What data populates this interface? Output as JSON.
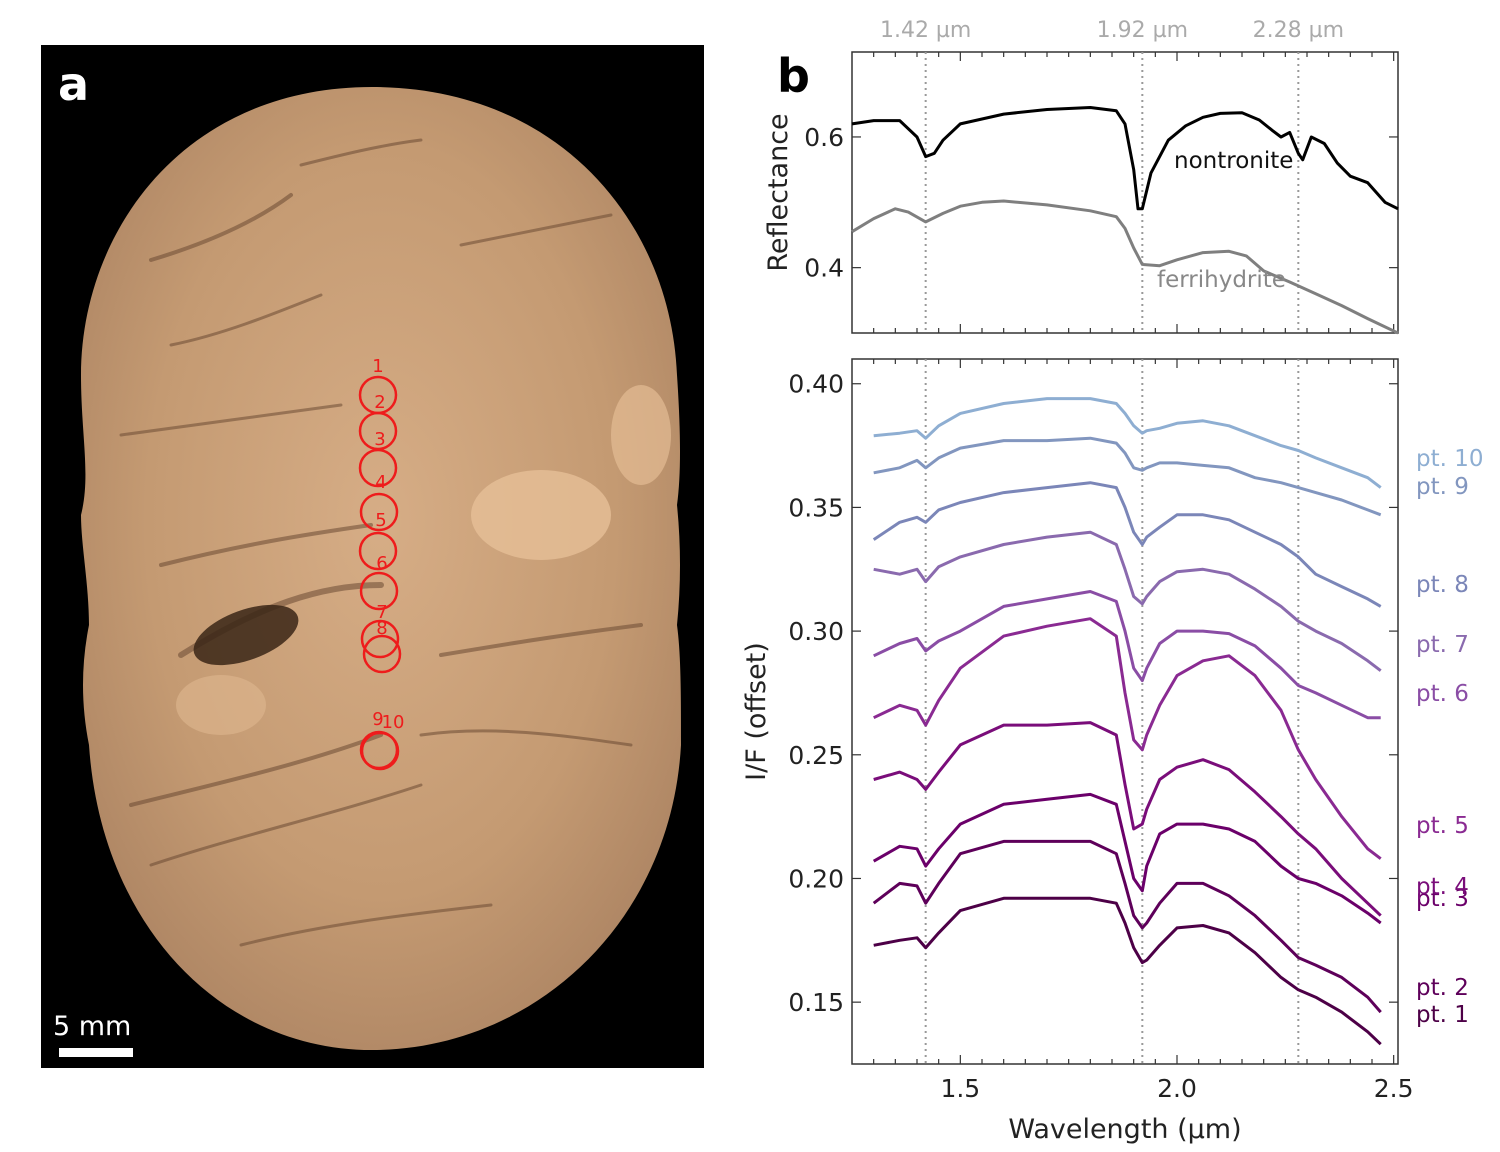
{
  "panel_a": {
    "label": "a",
    "scale_bar": "5 mm",
    "markers": [
      "1",
      "2",
      "3",
      "4",
      "5",
      "6",
      "7",
      "8",
      "9",
      "10"
    ]
  },
  "panel_b": {
    "label": "b"
  },
  "chart_data": [
    {
      "type": "line",
      "xlim": [
        1.25,
        2.51
      ],
      "ylim": [
        0.3,
        0.73
      ],
      "ylabel": "Reflectance",
      "yticks": [
        0.4,
        0.6
      ],
      "reference_lines": [
        1.42,
        1.92,
        2.28
      ],
      "reference_labels": [
        "1.42 µm",
        "1.92 µm",
        "2.28 µm"
      ],
      "series": [
        {
          "name": "nontronite",
          "color": "#000000",
          "x": [
            1.25,
            1.3,
            1.36,
            1.4,
            1.42,
            1.44,
            1.46,
            1.5,
            1.6,
            1.7,
            1.8,
            1.86,
            1.88,
            1.9,
            1.91,
            1.92,
            1.94,
            1.98,
            2.02,
            2.06,
            2.1,
            2.15,
            2.19,
            2.22,
            2.24,
            2.26,
            2.28,
            2.29,
            2.31,
            2.34,
            2.37,
            2.4,
            2.44,
            2.48,
            2.51
          ],
          "y": [
            0.62,
            0.625,
            0.625,
            0.6,
            0.57,
            0.575,
            0.595,
            0.62,
            0.635,
            0.642,
            0.645,
            0.64,
            0.62,
            0.55,
            0.49,
            0.49,
            0.545,
            0.595,
            0.617,
            0.63,
            0.636,
            0.637,
            0.626,
            0.61,
            0.6,
            0.607,
            0.575,
            0.565,
            0.6,
            0.59,
            0.56,
            0.54,
            0.53,
            0.5,
            0.49
          ]
        },
        {
          "name": "ferrihydrite",
          "color": "#7f7f7f",
          "x": [
            1.25,
            1.3,
            1.35,
            1.38,
            1.42,
            1.46,
            1.5,
            1.55,
            1.6,
            1.7,
            1.8,
            1.86,
            1.88,
            1.9,
            1.92,
            1.96,
            2.0,
            2.06,
            2.12,
            2.16,
            2.2,
            2.26,
            2.32,
            2.38,
            2.44,
            2.51
          ],
          "y": [
            0.455,
            0.475,
            0.49,
            0.485,
            0.47,
            0.483,
            0.494,
            0.5,
            0.502,
            0.496,
            0.487,
            0.478,
            0.46,
            0.43,
            0.405,
            0.403,
            0.412,
            0.423,
            0.425,
            0.418,
            0.395,
            0.378,
            0.36,
            0.342,
            0.322,
            0.3
          ]
        }
      ]
    },
    {
      "type": "line",
      "xlim": [
        1.25,
        2.51
      ],
      "ylim": [
        0.125,
        0.41
      ],
      "xlabel": "Wavelength (µm)",
      "ylabel": "I/F (offset)",
      "xticks": [
        1.5,
        2.0,
        2.5
      ],
      "xtick_labels": [
        "1.5",
        "2.0",
        "2.5"
      ],
      "yticks": [
        0.15,
        0.2,
        0.25,
        0.3,
        0.35,
        0.4
      ],
      "ytick_labels": [
        "0.15",
        "0.20",
        "0.25",
        "0.30",
        "0.35",
        "0.40"
      ],
      "reference_lines": [
        1.42,
        1.92,
        2.28
      ],
      "x": [
        1.3,
        1.36,
        1.4,
        1.42,
        1.45,
        1.5,
        1.6,
        1.7,
        1.8,
        1.86,
        1.88,
        1.9,
        1.92,
        1.93,
        1.96,
        2.0,
        2.06,
        2.12,
        2.18,
        2.24,
        2.28,
        2.32,
        2.38,
        2.44,
        2.47
      ],
      "series": [
        {
          "name": "pt. 1",
          "color": "#4d0047",
          "y": [
            0.173,
            0.175,
            0.176,
            0.172,
            0.178,
            0.187,
            0.192,
            0.192,
            0.192,
            0.19,
            0.182,
            0.172,
            0.166,
            0.167,
            0.173,
            0.18,
            0.181,
            0.178,
            0.17,
            0.16,
            0.155,
            0.152,
            0.146,
            0.138,
            0.133
          ]
        },
        {
          "name": "pt. 2",
          "color": "#5e005a",
          "y": [
            0.19,
            0.198,
            0.197,
            0.19,
            0.198,
            0.21,
            0.215,
            0.215,
            0.215,
            0.21,
            0.198,
            0.185,
            0.18,
            0.182,
            0.19,
            0.198,
            0.198,
            0.193,
            0.185,
            0.175,
            0.168,
            0.165,
            0.16,
            0.152,
            0.146
          ]
        },
        {
          "name": "pt. 3",
          "color": "#6b006a",
          "y": [
            0.207,
            0.213,
            0.212,
            0.205,
            0.212,
            0.222,
            0.23,
            0.232,
            0.234,
            0.23,
            0.215,
            0.2,
            0.195,
            0.205,
            0.218,
            0.222,
            0.222,
            0.22,
            0.215,
            0.205,
            0.2,
            0.198,
            0.193,
            0.186,
            0.182
          ]
        },
        {
          "name": "pt. 4",
          "color": "#7a0d7a",
          "y": [
            0.24,
            0.243,
            0.24,
            0.236,
            0.243,
            0.254,
            0.262,
            0.262,
            0.263,
            0.258,
            0.238,
            0.22,
            0.222,
            0.228,
            0.24,
            0.245,
            0.248,
            0.244,
            0.235,
            0.225,
            0.218,
            0.212,
            0.2,
            0.19,
            0.185
          ]
        },
        {
          "name": "pt. 5",
          "color": "#8a2a92",
          "y": [
            0.265,
            0.27,
            0.268,
            0.262,
            0.272,
            0.285,
            0.298,
            0.302,
            0.305,
            0.298,
            0.275,
            0.256,
            0.252,
            0.258,
            0.27,
            0.282,
            0.288,
            0.29,
            0.282,
            0.268,
            0.252,
            0.24,
            0.225,
            0.212,
            0.208
          ]
        },
        {
          "name": "pt. 6",
          "color": "#8a4da5",
          "y": [
            0.29,
            0.295,
            0.297,
            0.292,
            0.296,
            0.3,
            0.31,
            0.313,
            0.316,
            0.312,
            0.3,
            0.285,
            0.28,
            0.285,
            0.295,
            0.3,
            0.3,
            0.299,
            0.294,
            0.285,
            0.278,
            0.275,
            0.27,
            0.265,
            0.265
          ]
        },
        {
          "name": "pt. 7",
          "color": "#8a6aae",
          "y": [
            0.325,
            0.323,
            0.325,
            0.32,
            0.326,
            0.33,
            0.335,
            0.338,
            0.34,
            0.335,
            0.325,
            0.314,
            0.311,
            0.314,
            0.32,
            0.324,
            0.325,
            0.323,
            0.317,
            0.31,
            0.304,
            0.3,
            0.295,
            0.288,
            0.284
          ]
        },
        {
          "name": "pt. 8",
          "color": "#7b86b8",
          "y": [
            0.337,
            0.344,
            0.346,
            0.344,
            0.349,
            0.352,
            0.356,
            0.358,
            0.36,
            0.358,
            0.35,
            0.34,
            0.335,
            0.338,
            0.342,
            0.347,
            0.347,
            0.345,
            0.34,
            0.335,
            0.33,
            0.323,
            0.318,
            0.313,
            0.31
          ]
        },
        {
          "name": "pt. 9",
          "color": "#8296bf",
          "y": [
            0.364,
            0.366,
            0.369,
            0.366,
            0.37,
            0.374,
            0.377,
            0.377,
            0.378,
            0.376,
            0.372,
            0.366,
            0.365,
            0.366,
            0.368,
            0.368,
            0.367,
            0.366,
            0.362,
            0.36,
            0.358,
            0.356,
            0.353,
            0.349,
            0.347
          ]
        },
        {
          "name": "pt. 10",
          "color": "#8eaed2",
          "y": [
            0.379,
            0.38,
            0.381,
            0.378,
            0.383,
            0.388,
            0.392,
            0.394,
            0.394,
            0.392,
            0.388,
            0.383,
            0.38,
            0.381,
            0.382,
            0.384,
            0.385,
            0.383,
            0.379,
            0.375,
            0.373,
            0.37,
            0.366,
            0.362,
            0.358
          ]
        }
      ]
    }
  ]
}
